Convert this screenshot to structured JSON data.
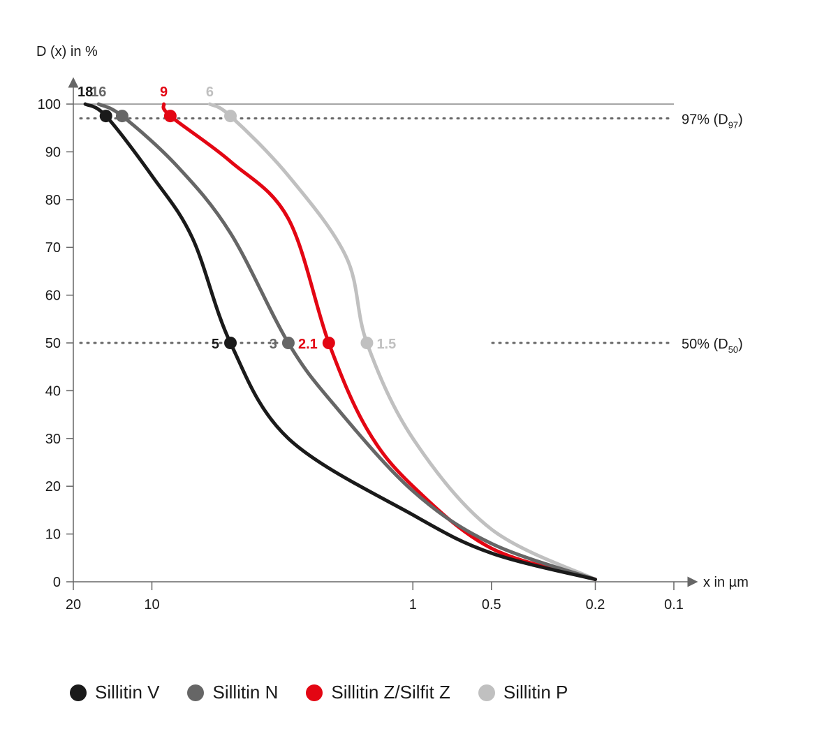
{
  "chart_data": {
    "type": "line",
    "ylabel": "D (x) in %",
    "xlabel": "x in µm",
    "x_scale": "log-reversed",
    "xlim": [
      20,
      0.1
    ],
    "ylim": [
      0,
      100
    ],
    "x_ticks": [
      20,
      10,
      1,
      0.5,
      0.2,
      0.1
    ],
    "x_tick_labels": [
      "20",
      "10",
      "1",
      "0.5",
      "0.2",
      "0.1"
    ],
    "y_ticks": [
      0,
      10,
      20,
      30,
      40,
      50,
      60,
      70,
      80,
      90,
      100
    ],
    "y_tick_labels": [
      "0",
      "10",
      "20",
      "30",
      "40",
      "50",
      "60",
      "70",
      "80",
      "90",
      "100"
    ],
    "reference_lines": [
      {
        "y": 97,
        "label": "97% (D",
        "sub": "97",
        "suffix": ")",
        "style": "dotted"
      },
      {
        "y": 50,
        "label": "50% (D",
        "sub": "50",
        "suffix": ")",
        "style": "dotted"
      }
    ],
    "series": [
      {
        "name": "Sillitin V",
        "color": "#1a1a1a",
        "points": [
          [
            18,
            100
          ],
          [
            15,
            97.5
          ],
          [
            10,
            85
          ],
          [
            7,
            72
          ],
          [
            5,
            50
          ],
          [
            3,
            30
          ],
          [
            1,
            14
          ],
          [
            0.5,
            6
          ],
          [
            0.2,
            0.5
          ]
        ],
        "d50": 5,
        "d97": 15,
        "top": 18,
        "d50_label": "5",
        "top_label": "18"
      },
      {
        "name": "Sillitin N",
        "color": "#666666",
        "points": [
          [
            16,
            100
          ],
          [
            13,
            97.5
          ],
          [
            8,
            87
          ],
          [
            5,
            73
          ],
          [
            3,
            50
          ],
          [
            2,
            37
          ],
          [
            1,
            19
          ],
          [
            0.5,
            8
          ],
          [
            0.2,
            0.5
          ]
        ],
        "d50": 3,
        "d97": 13,
        "top": 16,
        "d50_label": "3",
        "top_label": "16"
      },
      {
        "name": "Sillitin Z/Silfit Z",
        "color": "#e30613",
        "points": [
          [
            9,
            100
          ],
          [
            8.5,
            97.5
          ],
          [
            5,
            88
          ],
          [
            3,
            76
          ],
          [
            2.1,
            50
          ],
          [
            1.5,
            32
          ],
          [
            1,
            20
          ],
          [
            0.5,
            7
          ],
          [
            0.2,
            0.5
          ]
        ],
        "d50": 2.1,
        "d97": 8.5,
        "top": 9,
        "d50_label": "2.1",
        "top_label": "9"
      },
      {
        "name": "Sillitin P",
        "color": "#c0c0c0",
        "points": [
          [
            6,
            100
          ],
          [
            5,
            97.5
          ],
          [
            3,
            85
          ],
          [
            1.8,
            68
          ],
          [
            1.5,
            50
          ],
          [
            1,
            30
          ],
          [
            0.5,
            11
          ],
          [
            0.2,
            0.5
          ]
        ],
        "d50": 1.5,
        "d97": 5,
        "top": 6,
        "d50_label": "1.5",
        "top_label": "6"
      }
    ]
  }
}
